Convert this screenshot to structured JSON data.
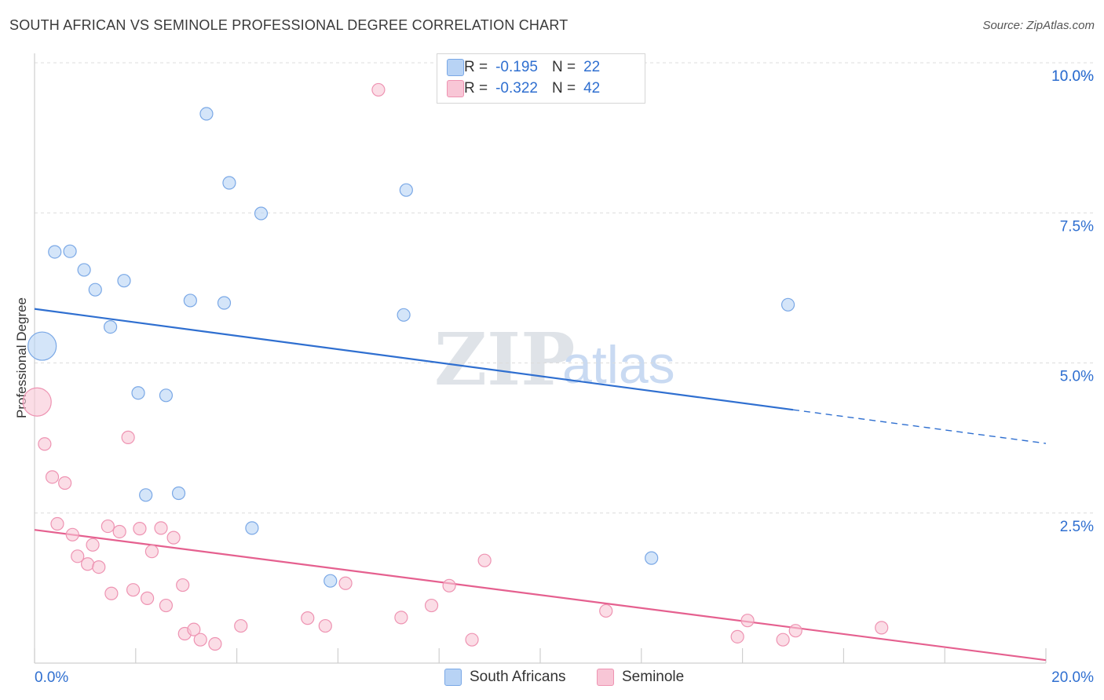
{
  "title": "SOUTH AFRICAN VS SEMINOLE PROFESSIONAL DEGREE CORRELATION CHART",
  "source": "Source: ZipAtlas.com",
  "watermark": {
    "zip": "ZIP",
    "atlas": "atlas"
  },
  "colors": {
    "south_africans_fill": "#b8d3f5",
    "south_africans_stroke": "#7aa8e6",
    "south_africans_line": "#2f6fd0",
    "seminole_fill": "#f8c6d6",
    "seminole_stroke": "#ee93b2",
    "seminole_line": "#e5608f",
    "value_text": "#2f6fd0"
  },
  "legend_top": {
    "r_label": "R =",
    "n_label": "N =",
    "rows": [
      {
        "series": "South Africans",
        "r": "-0.195",
        "n": "22"
      },
      {
        "series": "Seminole",
        "r": "-0.322",
        "n": "42"
      }
    ]
  },
  "chart_data": {
    "type": "scatter",
    "title": "SOUTH AFRICAN VS SEMINOLE PROFESSIONAL DEGREE CORRELATION CHART",
    "xlabel": "",
    "ylabel": "Professional Degree",
    "xlim": [
      0,
      20
    ],
    "ylim": [
      0,
      10
    ],
    "x_tick_labels": [
      "0.0%",
      "20.0%"
    ],
    "y_ticks": [
      2.5,
      5.0,
      7.5,
      10.0
    ],
    "y_tick_labels": [
      "2.5%",
      "5.0%",
      "7.5%",
      "10.0%"
    ],
    "grid": true,
    "legend_position": "bottom-center",
    "series": [
      {
        "name": "South Africans",
        "r": -0.195,
        "n": 22,
        "trend": {
          "x0": 0,
          "y0": 5.9,
          "x1": 15.0,
          "y1": 4.22,
          "dash_to_x": 20,
          "dash_to_y": 3.66
        },
        "points": [
          {
            "x": 0.15,
            "y": 5.28,
            "big": true
          },
          {
            "x": 0.4,
            "y": 6.85
          },
          {
            "x": 0.7,
            "y": 6.86
          },
          {
            "x": 0.98,
            "y": 6.55
          },
          {
            "x": 1.2,
            "y": 6.22
          },
          {
            "x": 1.5,
            "y": 5.6
          },
          {
            "x": 1.77,
            "y": 6.37
          },
          {
            "x": 2.05,
            "y": 4.5
          },
          {
            "x": 2.6,
            "y": 4.46
          },
          {
            "x": 3.08,
            "y": 6.04
          },
          {
            "x": 3.4,
            "y": 9.15
          },
          {
            "x": 3.75,
            "y": 6.0
          },
          {
            "x": 3.85,
            "y": 8.0
          },
          {
            "x": 4.48,
            "y": 7.49
          },
          {
            "x": 7.3,
            "y": 5.8
          },
          {
            "x": 7.35,
            "y": 7.88
          },
          {
            "x": 14.9,
            "y": 5.97
          },
          {
            "x": 2.2,
            "y": 2.8
          },
          {
            "x": 2.85,
            "y": 2.83
          },
          {
            "x": 4.3,
            "y": 2.25
          },
          {
            "x": 5.85,
            "y": 1.37
          },
          {
            "x": 12.2,
            "y": 1.75
          }
        ]
      },
      {
        "name": "Seminole",
        "r": -0.322,
        "n": 42,
        "trend": {
          "x0": 0,
          "y0": 2.22,
          "x1": 20,
          "y1": 0.05
        },
        "points": [
          {
            "x": 0.05,
            "y": 4.35,
            "big": true
          },
          {
            "x": 0.2,
            "y": 3.65
          },
          {
            "x": 0.35,
            "y": 3.1
          },
          {
            "x": 0.6,
            "y": 3.0
          },
          {
            "x": 0.45,
            "y": 2.32
          },
          {
            "x": 0.75,
            "y": 2.14
          },
          {
            "x": 0.85,
            "y": 1.78
          },
          {
            "x": 1.05,
            "y": 1.65
          },
          {
            "x": 1.15,
            "y": 1.97
          },
          {
            "x": 1.27,
            "y": 1.6
          },
          {
            "x": 1.45,
            "y": 2.28
          },
          {
            "x": 1.52,
            "y": 1.16
          },
          {
            "x": 1.68,
            "y": 2.19
          },
          {
            "x": 1.85,
            "y": 3.76
          },
          {
            "x": 1.95,
            "y": 1.22
          },
          {
            "x": 2.08,
            "y": 2.24
          },
          {
            "x": 2.23,
            "y": 1.08
          },
          {
            "x": 2.32,
            "y": 1.86
          },
          {
            "x": 2.5,
            "y": 2.25
          },
          {
            "x": 2.6,
            "y": 0.96
          },
          {
            "x": 2.75,
            "y": 2.09
          },
          {
            "x": 2.93,
            "y": 1.3
          },
          {
            "x": 2.97,
            "y": 0.49
          },
          {
            "x": 3.15,
            "y": 0.56
          },
          {
            "x": 3.28,
            "y": 0.39
          },
          {
            "x": 3.57,
            "y": 0.32
          },
          {
            "x": 4.08,
            "y": 0.62
          },
          {
            "x": 5.4,
            "y": 0.75
          },
          {
            "x": 5.75,
            "y": 0.62
          },
          {
            "x": 6.15,
            "y": 1.33
          },
          {
            "x": 6.8,
            "y": 9.55
          },
          {
            "x": 7.25,
            "y": 0.76
          },
          {
            "x": 7.85,
            "y": 0.96
          },
          {
            "x": 8.2,
            "y": 1.29
          },
          {
            "x": 8.65,
            "y": 0.39
          },
          {
            "x": 8.9,
            "y": 1.71
          },
          {
            "x": 11.3,
            "y": 0.87
          },
          {
            "x": 13.9,
            "y": 0.44
          },
          {
            "x": 14.1,
            "y": 0.71
          },
          {
            "x": 14.8,
            "y": 0.39
          },
          {
            "x": 15.05,
            "y": 0.54
          },
          {
            "x": 16.75,
            "y": 0.59
          }
        ]
      }
    ]
  }
}
